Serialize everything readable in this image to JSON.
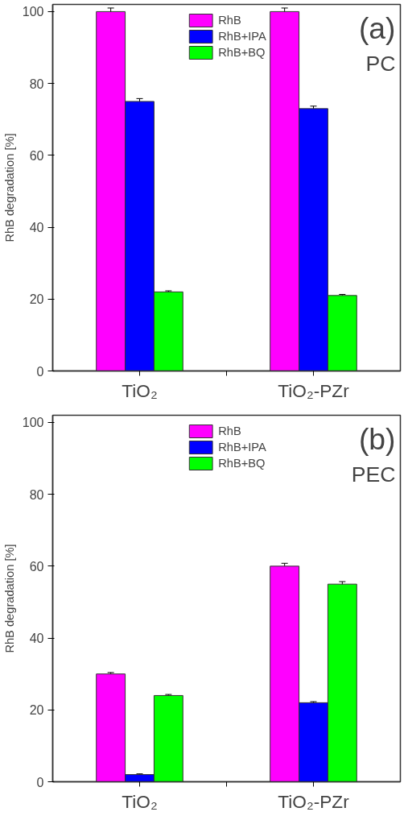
{
  "chart_data": [
    {
      "type": "bar",
      "ylabel": "RhB degradation [%]",
      "annotations": [
        "(a)",
        "PC"
      ],
      "categories": [
        "TiO₂",
        "TiO₂-PZr"
      ],
      "ylim": [
        0,
        102
      ],
      "yticks": [
        0,
        20,
        40,
        60,
        80,
        100
      ],
      "legend": "top",
      "grid": false,
      "series": [
        {
          "name": "RhB",
          "color": "#ff00ff",
          "values": [
            100,
            100
          ],
          "errors": [
            1,
            1
          ]
        },
        {
          "name": "RhB+IPA",
          "color": "#0000ff",
          "values": [
            75,
            73
          ],
          "errors": [
            0.8,
            0.7
          ]
        },
        {
          "name": "RhB+BQ",
          "color": "#00ff00",
          "values": [
            22,
            21
          ],
          "errors": [
            0.3,
            0.3
          ]
        }
      ]
    },
    {
      "type": "bar",
      "ylabel": "RhB degradation [%]",
      "annotations": [
        "(b)",
        "PEC"
      ],
      "categories": [
        "TiO₂",
        "TiO₂-PZr"
      ],
      "ylim": [
        0,
        102
      ],
      "yticks": [
        0,
        20,
        40,
        60,
        80,
        100
      ],
      "legend": "top",
      "grid": false,
      "series": [
        {
          "name": "RhB",
          "color": "#ff00ff",
          "values": [
            30,
            60
          ],
          "errors": [
            0.4,
            0.8
          ]
        },
        {
          "name": "RhB+IPA",
          "color": "#0000ff",
          "values": [
            2,
            22
          ],
          "errors": [
            0.2,
            0.3
          ]
        },
        {
          "name": "RhB+BQ",
          "color": "#00ff00",
          "values": [
            24,
            55
          ],
          "errors": [
            0.3,
            0.7
          ]
        }
      ]
    }
  ]
}
